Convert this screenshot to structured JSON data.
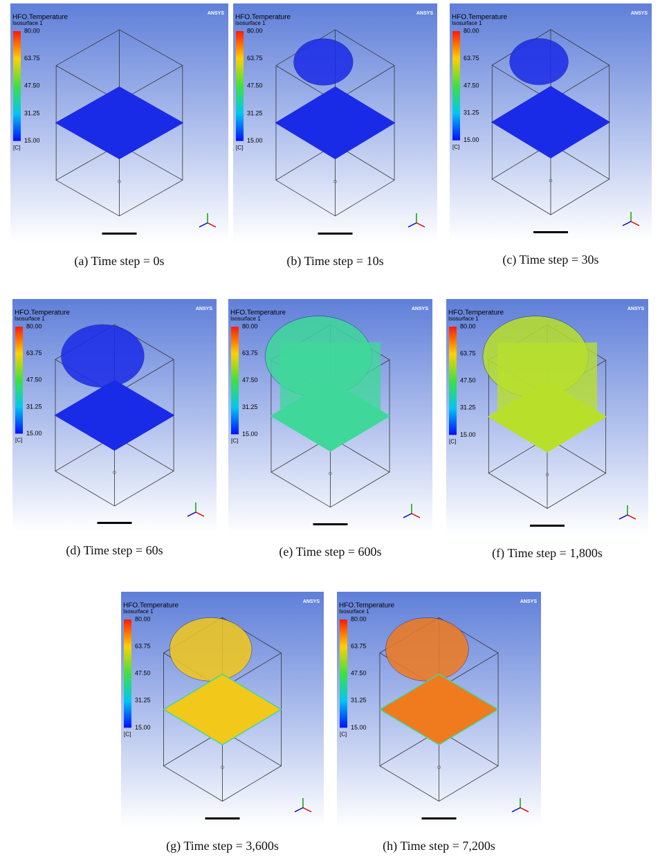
{
  "legend": {
    "title": "HFO.Temperature",
    "subtitle": "Isosurface 1",
    "ticks": [
      "80.00",
      "63.75",
      "47.50",
      "31.25",
      "15.00"
    ],
    "unit": "[C]",
    "brand": "ANSYS"
  },
  "panels": [
    {
      "caption": "(a)  Time  step  =  0s",
      "surface_color": "#1a2be8"
    },
    {
      "caption": "(b)  Time  step  =  10s",
      "surface_color": "#1a2be8"
    },
    {
      "caption": "(c)  Time  step  =  30s",
      "surface_color": "#1a2be8"
    },
    {
      "caption": "(d)  Time  step  =  60s",
      "surface_color": "#1a2be8"
    },
    {
      "caption": "(e)  Time  step  =  600s",
      "surface_color": "#3fd89a"
    },
    {
      "caption": "(f)  Time  step  =  1,800s",
      "surface_color": "#b8e02a"
    },
    {
      "caption": "(g)  Time  step  =  3,600s",
      "surface_color": "#f2c81a"
    },
    {
      "caption": "(h)  Time  step  =  7,200s",
      "surface_color": "#f07a1e"
    }
  ]
}
